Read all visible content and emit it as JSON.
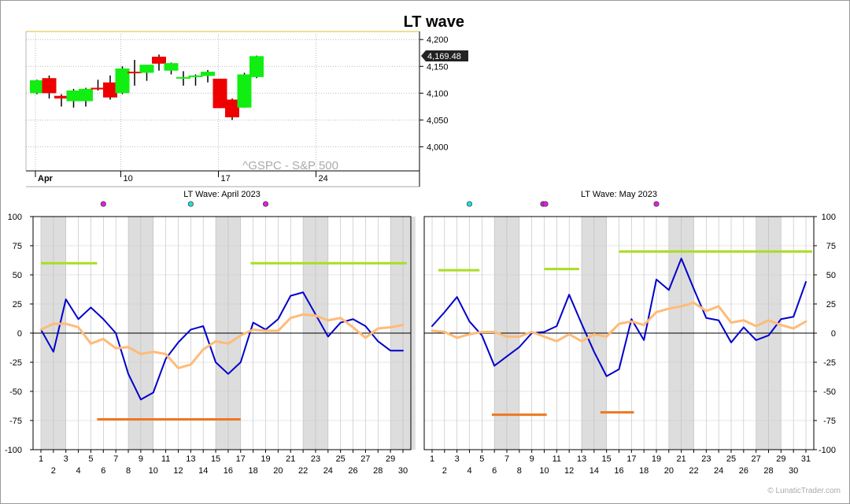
{
  "title": "LT wave",
  "watermark": "© LunaticTrader.com",
  "colors": {
    "up": "#11ee11",
    "down": "#ee0000",
    "wave": "#0000cc",
    "smooth": "#ffbb77",
    "upper_band": "#aadd22",
    "lower_band": "#ee7722",
    "weekend": "#dddddd",
    "dot_cyan": "#22dddd",
    "dot_magenta": "#dd22dd",
    "price_badge": "#222222"
  },
  "chart_data": [
    {
      "type": "candlestick",
      "name": "price",
      "label": "^GSPC - S&P 500",
      "ylim": [
        3955,
        4215
      ],
      "yticks": [
        4000,
        4050,
        4100,
        4150,
        4200
      ],
      "ytick_labels": [
        "4,000",
        "4,050",
        "4,100",
        "4,150",
        "4,200"
      ],
      "last_price": 4169.48,
      "last_price_label": "4,169.48",
      "xtick_labels": [
        {
          "label": "Apr",
          "index": 0
        },
        {
          "label": "10",
          "index": 7
        },
        {
          "label": "17",
          "index": 15
        },
        {
          "label": "24",
          "index": 23
        }
      ],
      "candles": [
        {
          "o": 4100,
          "h": 4125,
          "l": 4098,
          "c": 4124
        },
        {
          "o": 4128,
          "h": 4133,
          "l": 4090,
          "c": 4100
        },
        {
          "o": 4095,
          "h": 4098,
          "l": 4075,
          "c": 4090
        },
        {
          "o": 4085,
          "h": 4108,
          "l": 4073,
          "c": 4105
        },
        {
          "o": 4085,
          "h": 4110,
          "l": 4075,
          "c": 4108
        },
        {
          "o": 4110,
          "h": 4125,
          "l": 4105,
          "c": 4108
        },
        {
          "o": 4120,
          "h": 4133,
          "l": 4088,
          "c": 4092
        },
        {
          "o": 4100,
          "h": 4150,
          "l": 4098,
          "c": 4146
        },
        {
          "o": 4140,
          "h": 4162,
          "l": 4114,
          "c": 4138
        },
        {
          "o": 4138,
          "h": 4153,
          "l": 4123,
          "c": 4153
        },
        {
          "o": 4168,
          "h": 4172,
          "l": 4142,
          "c": 4155
        },
        {
          "o": 4142,
          "h": 4157,
          "l": 4135,
          "c": 4156
        },
        {
          "o": 4130,
          "h": 4141,
          "l": 4114,
          "c": 4130
        },
        {
          "o": 4130,
          "h": 4135,
          "l": 4114,
          "c": 4133
        },
        {
          "o": 4132,
          "h": 4143,
          "l": 4120,
          "c": 4140
        },
        {
          "o": 4127,
          "h": 4127,
          "l": 4072,
          "c": 4072
        },
        {
          "o": 4088,
          "h": 4090,
          "l": 4050,
          "c": 4055
        },
        {
          "o": 4073,
          "h": 4138,
          "l": 4073,
          "c": 4135
        },
        {
          "o": 4130,
          "h": 4170,
          "l": 4128,
          "c": 4169
        }
      ]
    },
    {
      "type": "line",
      "name": "april",
      "title": "LT Wave: April 2023",
      "ylim": [
        -100,
        100
      ],
      "yticks": [
        -100,
        -75,
        -50,
        -25,
        0,
        25,
        50,
        75,
        100
      ],
      "x": [
        1,
        2,
        3,
        4,
        5,
        6,
        7,
        8,
        9,
        10,
        11,
        12,
        13,
        14,
        15,
        16,
        17,
        18,
        19,
        20,
        21,
        22,
        23,
        24,
        25,
        26,
        27,
        28,
        29,
        30
      ],
      "days_in_month": 30,
      "weekends": [
        [
          1,
          2
        ],
        [
          8,
          9
        ],
        [
          15,
          16
        ],
        [
          22,
          23
        ],
        [
          29,
          30
        ]
      ],
      "series": [
        {
          "key": "wave",
          "values": [
            3,
            -16,
            29,
            12,
            22,
            12,
            0,
            -35,
            -57,
            -51,
            -22,
            -8,
            3,
            6,
            -25,
            -35,
            -25,
            9,
            3,
            12,
            32,
            35,
            16,
            -3,
            9,
            12,
            6,
            -7,
            -15,
            -15
          ]
        },
        {
          "key": "smooth",
          "values": [
            3,
            8,
            8,
            5,
            -9,
            -5,
            -13,
            -12,
            -18,
            -16,
            -18,
            -30,
            -27,
            -14,
            -7,
            -9,
            -2,
            3,
            2,
            2,
            13,
            16,
            15,
            11,
            13,
            5,
            -4,
            4,
            5,
            7
          ]
        }
      ],
      "upper_band": {
        "value": 60,
        "segments": [
          [
            1,
            5.5
          ],
          [
            17.8,
            30.3
          ]
        ]
      },
      "lower_band": {
        "value": -74,
        "segments": [
          [
            5.5,
            17
          ]
        ]
      },
      "dots": [
        {
          "x": 6,
          "color": "dot_magenta"
        },
        {
          "x": 13,
          "color": "dot_cyan"
        },
        {
          "x": 19,
          "color": "dot_magenta"
        }
      ]
    },
    {
      "type": "line",
      "name": "may",
      "title": "LT Wave: May 2023",
      "ylim": [
        -100,
        100
      ],
      "yticks": [
        -100,
        -75,
        -50,
        -25,
        0,
        25,
        50,
        75,
        100
      ],
      "x": [
        1,
        2,
        3,
        4,
        5,
        6,
        7,
        8,
        9,
        10,
        11,
        12,
        13,
        14,
        15,
        16,
        17,
        18,
        19,
        20,
        21,
        22,
        23,
        24,
        25,
        26,
        27,
        28,
        29,
        30,
        31
      ],
      "days_in_month": 31,
      "weekends": [
        [
          6,
          7
        ],
        [
          13,
          14
        ],
        [
          20,
          21
        ],
        [
          27,
          28
        ]
      ],
      "series": [
        {
          "key": "wave",
          "values": [
            6,
            18,
            31,
            10,
            -2,
            -28,
            -20,
            -12,
            0,
            1,
            6,
            33,
            8,
            -16,
            -37,
            -31,
            12,
            -6,
            46,
            37,
            64,
            38,
            13,
            11,
            -8,
            5,
            -6,
            -2,
            12,
            14,
            44
          ]
        },
        {
          "key": "smooth",
          "values": [
            2,
            1,
            -4,
            -1,
            1,
            1,
            -3,
            -3,
            1,
            -3,
            -7,
            -1,
            -7,
            -1,
            -3,
            8,
            10,
            7,
            18,
            21,
            23,
            26,
            19,
            23,
            9,
            11,
            6,
            11,
            7,
            4,
            10
          ]
        }
      ],
      "upper_band": {
        "value": 70,
        "segments": [
          [
            16,
            31.5
          ]
        ]
      },
      "upper_band_short": [
        {
          "value": 54,
          "segments": [
            [
              1.5,
              4.8
            ]
          ]
        },
        {
          "value": 55,
          "segments": [
            [
              10,
              12.8
            ]
          ]
        }
      ],
      "lower_band": {
        "value": -70,
        "segments": [
          [
            5.8,
            10.2
          ]
        ]
      },
      "lower_band_short": [
        {
          "value": -68,
          "segments": [
            [
              14.5,
              17.2
            ]
          ]
        }
      ],
      "dots": [
        {
          "x": 4,
          "color": "dot_cyan"
        },
        {
          "x": 9.9,
          "color": "dot_magenta"
        },
        {
          "x": 10.1,
          "color": "dot_magenta"
        },
        {
          "x": 19,
          "color": "dot_magenta"
        }
      ]
    }
  ]
}
